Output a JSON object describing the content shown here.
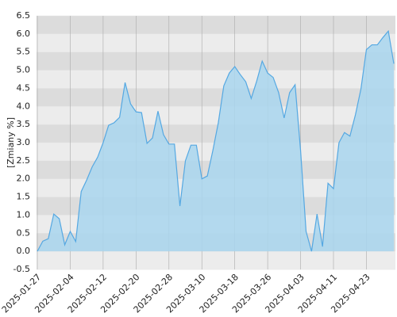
{
  "chart_data": {
    "type": "area",
    "y_label": "[Zmiany %]",
    "categories": [
      "2025-01-27",
      null,
      null,
      null,
      null,
      null,
      "2025-02-04",
      null,
      null,
      null,
      null,
      null,
      "2025-02-12",
      null,
      null,
      null,
      null,
      null,
      "2025-02-20",
      null,
      null,
      null,
      null,
      null,
      "2025-02-28",
      null,
      null,
      null,
      null,
      null,
      "2025-03-10",
      null,
      null,
      null,
      null,
      null,
      "2025-03-18",
      null,
      null,
      null,
      null,
      null,
      "2025-03-26",
      null,
      null,
      null,
      null,
      null,
      "2025-04-03",
      null,
      null,
      null,
      null,
      null,
      "2025-04-11",
      null,
      null,
      null,
      null,
      null,
      "2025-04-23",
      null,
      null,
      null,
      null,
      null
    ],
    "values": [
      0.0,
      0.28,
      0.35,
      1.03,
      0.9,
      0.18,
      0.55,
      0.27,
      1.65,
      1.97,
      2.33,
      2.6,
      3.0,
      3.48,
      3.55,
      3.7,
      4.66,
      4.07,
      3.85,
      3.83,
      2.98,
      3.13,
      3.87,
      3.22,
      2.96,
      2.96,
      1.25,
      2.5,
      2.93,
      2.93,
      2.0,
      2.08,
      2.78,
      3.55,
      4.57,
      4.92,
      5.1,
      4.88,
      4.68,
      4.22,
      4.7,
      5.25,
      4.92,
      4.8,
      4.38,
      3.68,
      4.38,
      4.6,
      2.78,
      0.55,
      0.0,
      1.03,
      0.13,
      1.88,
      1.73,
      3.0,
      3.28,
      3.18,
      3.77,
      4.48,
      5.57,
      5.7,
      5.7,
      5.9,
      6.08,
      5.18
    ],
    "color": "#55a8e2",
    "area_color": "#a9d6ee",
    "ylim": [
      -0.5,
      6.5
    ],
    "yticks": [
      -0.5,
      {
        "value": 0,
        "label": "0.0"
      },
      0.5,
      {
        "value": 1,
        "label": "1.0"
      },
      1.5,
      {
        "value": 2,
        "label": "2.0"
      },
      2.5,
      {
        "value": 3,
        "label": "3.0"
      },
      3.5,
      {
        "value": 4,
        "label": "4.0"
      },
      4.5,
      {
        "value": 5,
        "label": "5.0"
      },
      5.5,
      {
        "value": 6,
        "label": "6.0"
      },
      6.5
    ],
    "grid": true
  }
}
